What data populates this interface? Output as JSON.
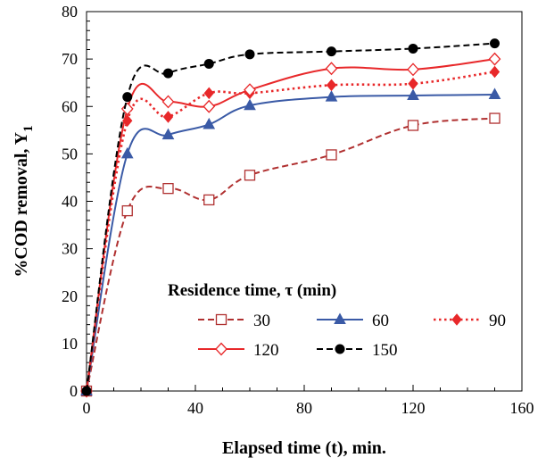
{
  "chart_data": {
    "type": "line",
    "xlabel": "Elapsed time (t), min.",
    "ylabel_main": "%COD removal, Y",
    "ylabel_sub": "1",
    "xlim": [
      0,
      160
    ],
    "ylim": [
      0,
      80
    ],
    "x_ticks": [
      "0",
      "40",
      "80",
      "120",
      "160"
    ],
    "y_ticks": [
      "0",
      "10",
      "20",
      "30",
      "40",
      "50",
      "60",
      "70",
      "80"
    ],
    "grid": false,
    "legend": {
      "title": "Residence time, τ (min)",
      "placement": "lower-right"
    },
    "series": [
      {
        "name": "30",
        "color": "#b03030",
        "line": "dashed",
        "marker": "square-open",
        "x": [
          0,
          15,
          30,
          45,
          60,
          90,
          120,
          150
        ],
        "y": [
          0,
          38,
          42.7,
          40.3,
          45.5,
          49.8,
          56,
          57.5
        ]
      },
      {
        "name": "60",
        "color": "#3a5aa6",
        "line": "solid",
        "marker": "triangle",
        "x": [
          0,
          15,
          30,
          45,
          60,
          90,
          120,
          150
        ],
        "y": [
          0,
          50,
          54,
          56.2,
          60.2,
          62,
          62.3,
          62.5
        ]
      },
      {
        "name": "90",
        "color": "#e8282a",
        "line": "dotted",
        "marker": "diamond",
        "x": [
          0,
          15,
          30,
          45,
          60,
          90,
          120,
          150
        ],
        "y": [
          0,
          57,
          57.8,
          62.8,
          62.8,
          64.5,
          64.8,
          67.3
        ]
      },
      {
        "name": "120",
        "color": "#e8282a",
        "line": "solid",
        "marker": "diamond-open",
        "x": [
          0,
          15,
          30,
          45,
          60,
          90,
          120,
          150
        ],
        "y": [
          0,
          59.5,
          61,
          60,
          63.5,
          68,
          67.8,
          70
        ]
      },
      {
        "name": "150",
        "color": "#000000",
        "line": "dashed",
        "marker": "circle",
        "x": [
          0,
          15,
          30,
          45,
          60,
          90,
          120,
          150
        ],
        "y": [
          0,
          62,
          67,
          69,
          71,
          71.6,
          72.2,
          73.3
        ]
      }
    ]
  }
}
